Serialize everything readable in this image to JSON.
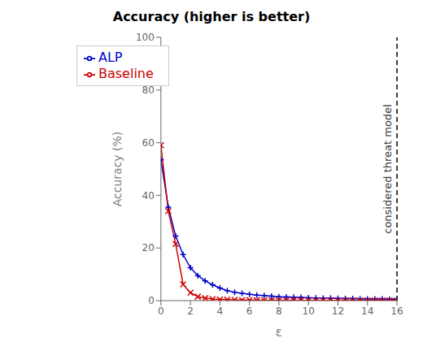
{
  "chart_data": {
    "type": "line",
    "title": "Accuracy (higher is better)",
    "xlabel": "ε",
    "ylabel": "Accuracy (%)",
    "x": [
      0,
      0.5,
      1,
      1.5,
      2,
      2.5,
      3,
      3.5,
      4,
      4.5,
      5,
      5.5,
      6,
      6.5,
      7,
      7.5,
      8,
      8.5,
      9,
      9.5,
      10,
      10.5,
      11,
      11.5,
      12,
      12.5,
      13,
      13.5,
      14,
      14.5,
      15,
      15.5,
      16
    ],
    "series": [
      {
        "name": "ALP",
        "color": "#0000cc",
        "marker": "+",
        "values": [
          53.5,
          35.5,
          24.5,
          17.5,
          12.5,
          9.5,
          7.5,
          6.0,
          4.8,
          3.8,
          3.2,
          2.8,
          2.4,
          2.1,
          1.9,
          1.7,
          1.5,
          1.4,
          1.3,
          1.2,
          1.1,
          1.0,
          0.95,
          0.9,
          0.85,
          0.8,
          0.75,
          0.7,
          0.65,
          0.6,
          0.58,
          0.55,
          0.52
        ]
      },
      {
        "name": "Baseline",
        "color": "#cc0000",
        "marker": "x",
        "values": [
          59.0,
          34.0,
          21.5,
          6.2,
          3.0,
          1.5,
          0.9,
          0.6,
          0.45,
          0.35,
          0.3,
          0.25,
          0.22,
          0.2,
          0.18,
          0.16,
          0.14,
          0.13,
          0.12,
          0.11,
          0.1,
          0.1,
          0.09,
          0.09,
          0.08,
          0.08,
          0.07,
          0.07,
          0.06,
          0.06,
          0.05,
          0.05,
          0.04
        ]
      }
    ],
    "annotations": [
      {
        "type": "vline",
        "x": 16,
        "text": "considered threat model",
        "line_style": "dashed"
      }
    ],
    "xlim": [
      0,
      16
    ],
    "ylim": [
      0,
      100
    ],
    "xticks": [
      0,
      2,
      4,
      6,
      8,
      10,
      12,
      14,
      16
    ],
    "yticks": [
      0,
      20,
      40,
      60,
      80,
      100
    ],
    "legend": "upper left",
    "grid": false
  }
}
